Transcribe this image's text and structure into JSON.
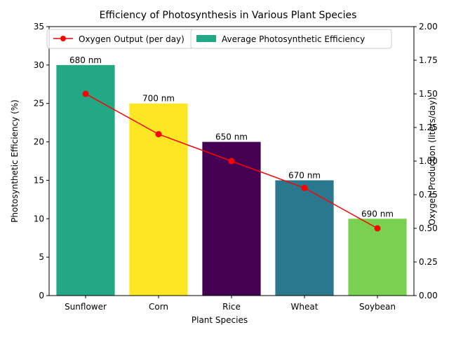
{
  "chart_data": {
    "type": "bar",
    "title": "Efficiency of Photosynthesis in Various Plant Species",
    "xlabel": "Plant Species",
    "ylabel": "Photosynthetic Efficiency (%)",
    "y2label": "Oxygen Production (liters/day)",
    "categories": [
      "Sunflower",
      "Corn",
      "Rice",
      "Wheat",
      "Soybean"
    ],
    "ylim": [
      0,
      35
    ],
    "y2lim": [
      0,
      2.0
    ],
    "yticks": [
      "0",
      "5",
      "10",
      "15",
      "20",
      "25",
      "30",
      "35"
    ],
    "y2ticks": [
      "0.00",
      "0.25",
      "0.50",
      "0.75",
      "1.00",
      "1.25",
      "1.50",
      "1.75",
      "2.00"
    ],
    "grid": false,
    "legend_position": "top",
    "series": [
      {
        "name": "Average Photosynthetic Efficiency",
        "kind": "bar",
        "axis": "left",
        "values": [
          30,
          25,
          20,
          15,
          10
        ],
        "bar_labels": [
          "680 nm",
          "700 nm",
          "650 nm",
          "670 nm",
          "690 nm"
        ],
        "colors": [
          "#22a884",
          "#fde725",
          "#440154",
          "#2a788e",
          "#7ad151"
        ],
        "legend_color": "#22a884"
      },
      {
        "name": "Oxygen Output (per day)",
        "kind": "line",
        "axis": "right",
        "values": [
          1.5,
          1.2,
          1.0,
          0.8,
          0.5
        ],
        "color": "#ff0000",
        "marker": "circle"
      }
    ]
  }
}
